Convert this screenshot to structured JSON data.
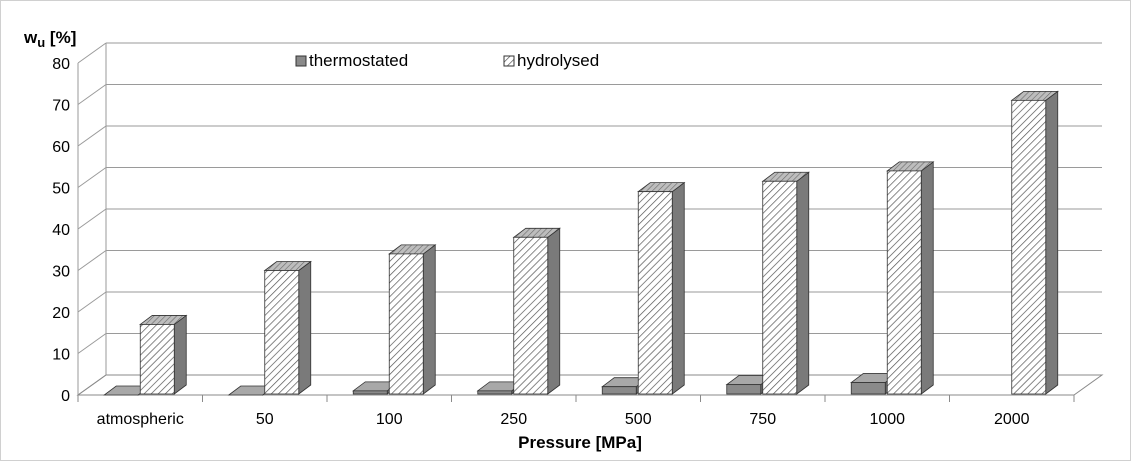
{
  "chart_data": {
    "type": "bar",
    "title": "",
    "ylabel_main": "w",
    "ylabel_sub": "u",
    "ylabel_unit": " [%]",
    "xlabel": "Pressure [MPa]",
    "ylim": [
      0,
      80
    ],
    "yticks": [
      "0",
      "10",
      "20",
      "30",
      "40",
      "50",
      "60",
      "70",
      "80"
    ],
    "yticks_values": [
      0,
      10,
      20,
      30,
      40,
      50,
      60,
      70,
      80
    ],
    "categories": [
      "atmospheric",
      "50",
      "100",
      "250",
      "500",
      "750",
      "1000",
      "2000"
    ],
    "series": [
      {
        "name": "thermostated",
        "values": [
          0,
          0,
          1,
          1,
          2,
          2.5,
          3,
          0
        ]
      },
      {
        "name": "hydrolysed",
        "values": [
          17,
          30,
          34,
          38,
          49,
          51.5,
          54,
          71
        ]
      }
    ],
    "grid": true,
    "legend": "top-center",
    "three_d": true,
    "colors": {
      "thermostated": "#8a8a8a",
      "hydrolysed_bg": "#ffffff",
      "hydrolysed_hatch": "#555555",
      "grid": "#9a9a9a",
      "side": "#7a7a7a"
    }
  }
}
